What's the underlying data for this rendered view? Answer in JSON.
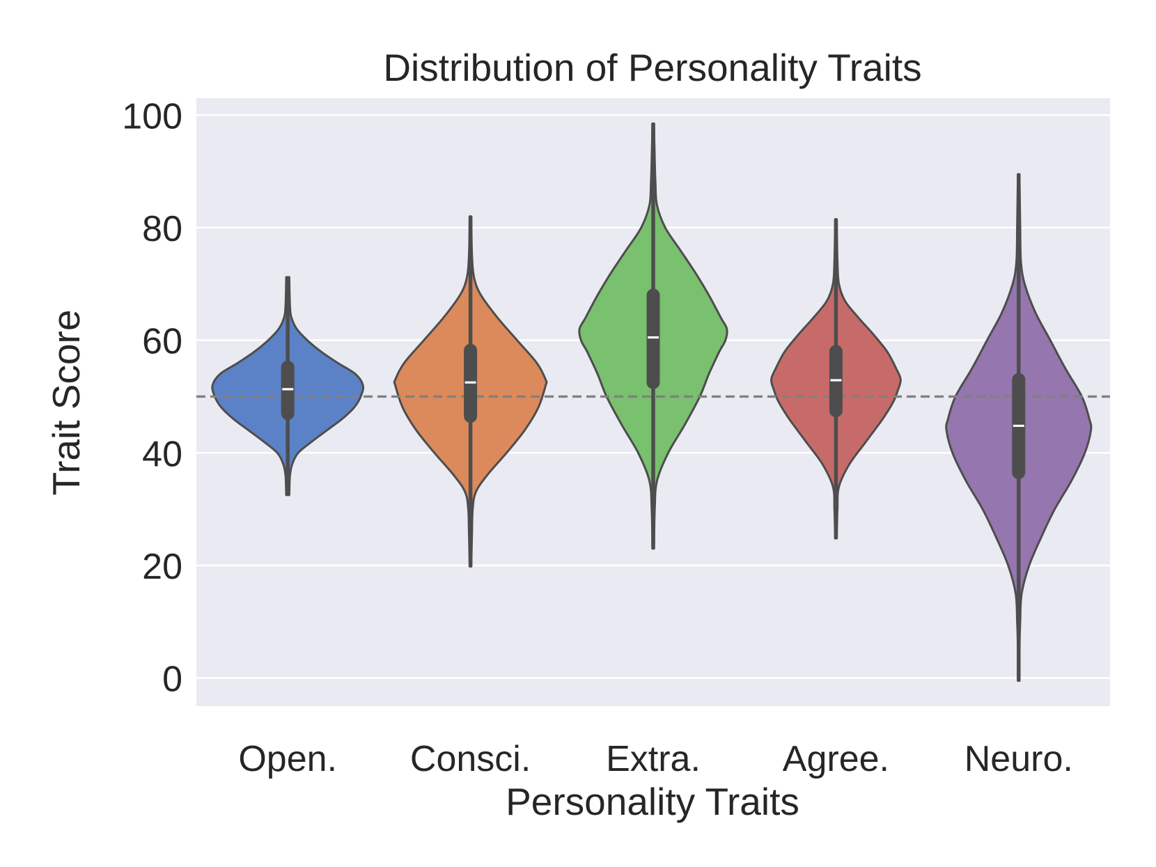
{
  "chart_data": {
    "type": "violin",
    "title": "Distribution of Personality Traits",
    "xlabel": "Personality Traits",
    "ylabel": "Trait Score",
    "ylim": [
      -5,
      103
    ],
    "yticks": [
      0,
      20,
      40,
      60,
      80,
      100
    ],
    "ytick_labels": [
      "0",
      "20",
      "40",
      "60",
      "80",
      "100"
    ],
    "grid": true,
    "reference_line": {
      "value": 50,
      "style": "dashed",
      "color": "#808080"
    },
    "colors": {
      "background": "#eaeaf2",
      "grid": "#ffffff",
      "outline": "#4d4d4d",
      "box": "#4d4d4d",
      "median": "#ffffff"
    },
    "categories": [
      "Open.",
      "Consci.",
      "Extra.",
      "Agree.",
      "Neuro."
    ],
    "series": [
      {
        "name": "Open.",
        "color": "#5b82c6",
        "min": 32.5,
        "q1": 47,
        "median": 51.3,
        "q3": 55.2,
        "max": 71.2,
        "density": [
          [
            32.5,
            0.02
          ],
          [
            36,
            0.03
          ],
          [
            38,
            0.06
          ],
          [
            40,
            0.14
          ],
          [
            42,
            0.32
          ],
          [
            44,
            0.52
          ],
          [
            46,
            0.72
          ],
          [
            48,
            0.88
          ],
          [
            50,
            0.97
          ],
          [
            52,
            1.0
          ],
          [
            54,
            0.9
          ],
          [
            56,
            0.66
          ],
          [
            58,
            0.44
          ],
          [
            60,
            0.26
          ],
          [
            62,
            0.12
          ],
          [
            64,
            0.05
          ],
          [
            66,
            0.03
          ],
          [
            71.2,
            0.02
          ]
        ]
      },
      {
        "name": "Consci.",
        "color": "#dc8a5b",
        "min": 19.8,
        "q1": 46.5,
        "median": 52.5,
        "q3": 58.2,
        "max": 82.0,
        "density": [
          [
            19.8,
            0.01
          ],
          [
            26,
            0.02
          ],
          [
            30,
            0.03
          ],
          [
            33,
            0.07
          ],
          [
            36,
            0.22
          ],
          [
            40,
            0.48
          ],
          [
            44,
            0.72
          ],
          [
            48,
            0.9
          ],
          [
            52,
            1.0
          ],
          [
            53,
            1.0
          ],
          [
            56,
            0.88
          ],
          [
            60,
            0.62
          ],
          [
            64,
            0.36
          ],
          [
            68,
            0.14
          ],
          [
            71,
            0.05
          ],
          [
            75,
            0.02
          ],
          [
            82,
            0.01
          ]
        ]
      },
      {
        "name": "Extra.",
        "color": "#79c06f",
        "min": 23.0,
        "q1": 52.5,
        "median": 60.5,
        "q3": 68.0,
        "max": 98.5,
        "density": [
          [
            23,
            0.01
          ],
          [
            30,
            0.02
          ],
          [
            35,
            0.05
          ],
          [
            40,
            0.2
          ],
          [
            45,
            0.42
          ],
          [
            50,
            0.62
          ],
          [
            54,
            0.74
          ],
          [
            58,
            0.88
          ],
          [
            60,
            0.96
          ],
          [
            62,
            0.98
          ],
          [
            64,
            0.9
          ],
          [
            68,
            0.74
          ],
          [
            72,
            0.56
          ],
          [
            76,
            0.36
          ],
          [
            80,
            0.16
          ],
          [
            84,
            0.05
          ],
          [
            88,
            0.03
          ],
          [
            92,
            0.02
          ],
          [
            98.5,
            0.01
          ]
        ]
      },
      {
        "name": "Agree.",
        "color": "#c76b6a",
        "min": 24.8,
        "q1": 47.5,
        "median": 52.9,
        "q3": 58.0,
        "max": 81.5,
        "density": [
          [
            24.8,
            0.01
          ],
          [
            30,
            0.02
          ],
          [
            34,
            0.04
          ],
          [
            38,
            0.18
          ],
          [
            42,
            0.4
          ],
          [
            46,
            0.62
          ],
          [
            49,
            0.76
          ],
          [
            51,
            0.82
          ],
          [
            53,
            0.86
          ],
          [
            55,
            0.8
          ],
          [
            58,
            0.68
          ],
          [
            61,
            0.5
          ],
          [
            64,
            0.3
          ],
          [
            67,
            0.12
          ],
          [
            70,
            0.04
          ],
          [
            74,
            0.02
          ],
          [
            81.5,
            0.01
          ]
        ]
      },
      {
        "name": "Neuro.",
        "color": "#9576ae",
        "min": -0.5,
        "q1": 36.5,
        "median": 44.8,
        "q3": 53.0,
        "max": 89.5,
        "density": [
          [
            -0.5,
            0.01
          ],
          [
            5,
            0.01
          ],
          [
            10,
            0.02
          ],
          [
            15,
            0.04
          ],
          [
            20,
            0.14
          ],
          [
            25,
            0.3
          ],
          [
            30,
            0.48
          ],
          [
            35,
            0.7
          ],
          [
            40,
            0.88
          ],
          [
            44,
            0.96
          ],
          [
            46,
            0.94
          ],
          [
            50,
            0.84
          ],
          [
            55,
            0.62
          ],
          [
            60,
            0.42
          ],
          [
            65,
            0.22
          ],
          [
            70,
            0.08
          ],
          [
            74,
            0.03
          ],
          [
            80,
            0.02
          ],
          [
            89.5,
            0.01
          ]
        ]
      }
    ]
  }
}
